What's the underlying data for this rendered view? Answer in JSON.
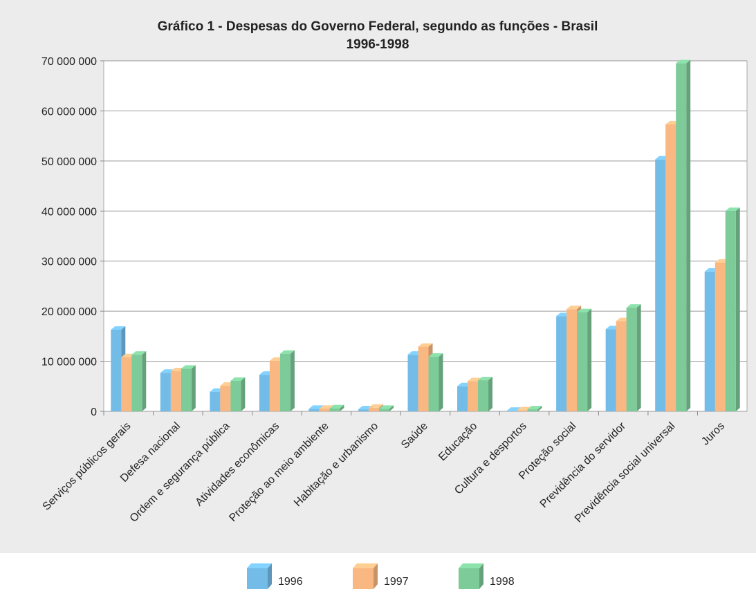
{
  "chart_data": {
    "type": "bar3d",
    "title": "Gráfico 1 - Despesas do Governo Federal, segundo as funções - Brasil",
    "subtitle": "1996-1998",
    "categories": [
      "Serviços públicos gerais",
      "Defesa nacional",
      "Ordem e segurança pública",
      "Atividades econômicas",
      "Proteção ao meio ambiente",
      "Habitação e urbanismo",
      "Saúde",
      "Educação",
      "Cultura e desportos",
      "Proteção social",
      "Previdência do servidor",
      "Previdência social universal",
      "Juros"
    ],
    "series": [
      {
        "name": "1996",
        "color": "#74bce8",
        "values": [
          16300000,
          7700000,
          3900000,
          7300000,
          500000,
          400000,
          11300000,
          5000000,
          100000,
          19000000,
          16400000,
          50300000,
          27900000
        ]
      },
      {
        "name": "1997",
        "color": "#f9b882",
        "values": [
          10800000,
          8000000,
          5100000,
          10100000,
          500000,
          700000,
          12900000,
          6000000,
          200000,
          20400000,
          18000000,
          57300000,
          29700000
        ]
      },
      {
        "name": "1998",
        "color": "#7ecb9a",
        "values": [
          11300000,
          8500000,
          6100000,
          11500000,
          600000,
          500000,
          10900000,
          6200000,
          400000,
          19800000,
          20700000,
          69500000,
          40000000
        ]
      }
    ],
    "ylim": [
      0,
      70000000
    ],
    "yticks": [
      {
        "value": 0,
        "label": "0"
      },
      {
        "value": 10000000,
        "label": "10 000 000"
      },
      {
        "value": 20000000,
        "label": "20 000 000"
      },
      {
        "value": 30000000,
        "label": "30 000 000"
      },
      {
        "value": 40000000,
        "label": "40 000 000"
      },
      {
        "value": 50000000,
        "label": "50 000 000"
      },
      {
        "value": 60000000,
        "label": "60 000 000"
      },
      {
        "value": 70000000,
        "label": "70 000 000"
      }
    ],
    "grid": true
  }
}
